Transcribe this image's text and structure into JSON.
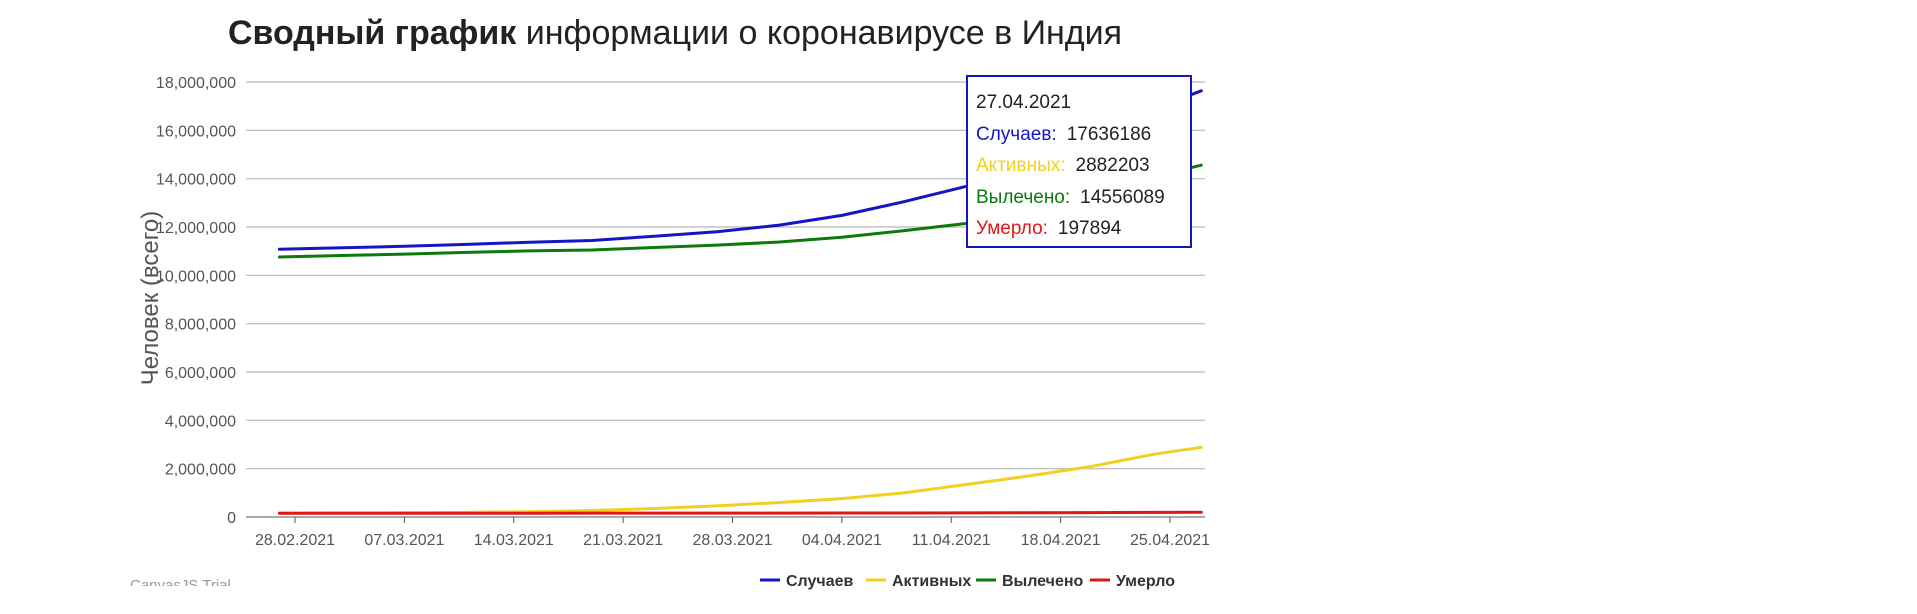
{
  "watermark": "CanvasJS Trial",
  "tooltip": {
    "date": "27.04.2021",
    "rows": [
      {
        "label": "Случаев:",
        "value": "17636186",
        "color": "#1515c4"
      },
      {
        "label": "Активных:",
        "value": "2882203",
        "color": "#f2d021"
      },
      {
        "label": "Вылечено:",
        "value": "14556089",
        "color": "#0b7a0b"
      },
      {
        "label": "Умерло:",
        "value": "197894",
        "color": "#e01515"
      }
    ]
  },
  "chart_data": {
    "type": "line",
    "title_bold": "Сводный график",
    "title_rest": " информации о коронавирусе в Индия",
    "ylabel": "Человек (всего)",
    "xlabel": "",
    "ylim": [
      0,
      18000000
    ],
    "yticks": [
      0,
      2000000,
      4000000,
      6000000,
      8000000,
      10000000,
      12000000,
      14000000,
      16000000,
      18000000
    ],
    "ytick_labels": [
      "0",
      "2,000,000",
      "4,000,000",
      "6,000,000",
      "8,000,000",
      "10,000,000",
      "12,000,000",
      "14,000,000",
      "16,000,000",
      "18,000,000"
    ],
    "xticks": [
      "28.02.2021",
      "07.03.2021",
      "14.03.2021",
      "21.03.2021",
      "28.03.2021",
      "04.04.2021",
      "11.04.2021",
      "18.04.2021",
      "25.04.2021"
    ],
    "grid": true,
    "legend_position": "bottom-right",
    "x": [
      "27.02.2021",
      "03.03.2021",
      "07.03.2021",
      "11.03.2021",
      "15.03.2021",
      "19.03.2021",
      "23.03.2021",
      "27.03.2021",
      "31.03.2021",
      "04.04.2021",
      "08.04.2021",
      "12.04.2021",
      "16.04.2021",
      "20.04.2021",
      "24.04.2021",
      "27.04.2021"
    ],
    "series": [
      {
        "name": "Случаев",
        "color": "#1515c4",
        "values": [
          11080000,
          11140000,
          11200000,
          11280000,
          11370000,
          11440000,
          11620000,
          11800000,
          12080000,
          12480000,
          13050000,
          13690000,
          14500000,
          15600000,
          16900000,
          17636186
        ]
      },
      {
        "name": "Активных",
        "color": "#f2d021",
        "values": [
          160000,
          170000,
          175000,
          190000,
          220000,
          270000,
          350000,
          460000,
          600000,
          760000,
          1000000,
          1350000,
          1700000,
          2100000,
          2600000,
          2882203
        ]
      },
      {
        "name": "Вылечено",
        "color": "#0b7a0b",
        "values": [
          10760000,
          10820000,
          10880000,
          10950000,
          11010000,
          11050000,
          11150000,
          11250000,
          11380000,
          11580000,
          11850000,
          12150000,
          12600000,
          13300000,
          14100000,
          14556089
        ]
      },
      {
        "name": "Умерло",
        "color": "#e01515",
        "values": [
          157000,
          157500,
          158000,
          158500,
          159000,
          159500,
          160500,
          161500,
          163000,
          165000,
          167500,
          170500,
          176000,
          182000,
          192000,
          197894
        ]
      }
    ]
  }
}
